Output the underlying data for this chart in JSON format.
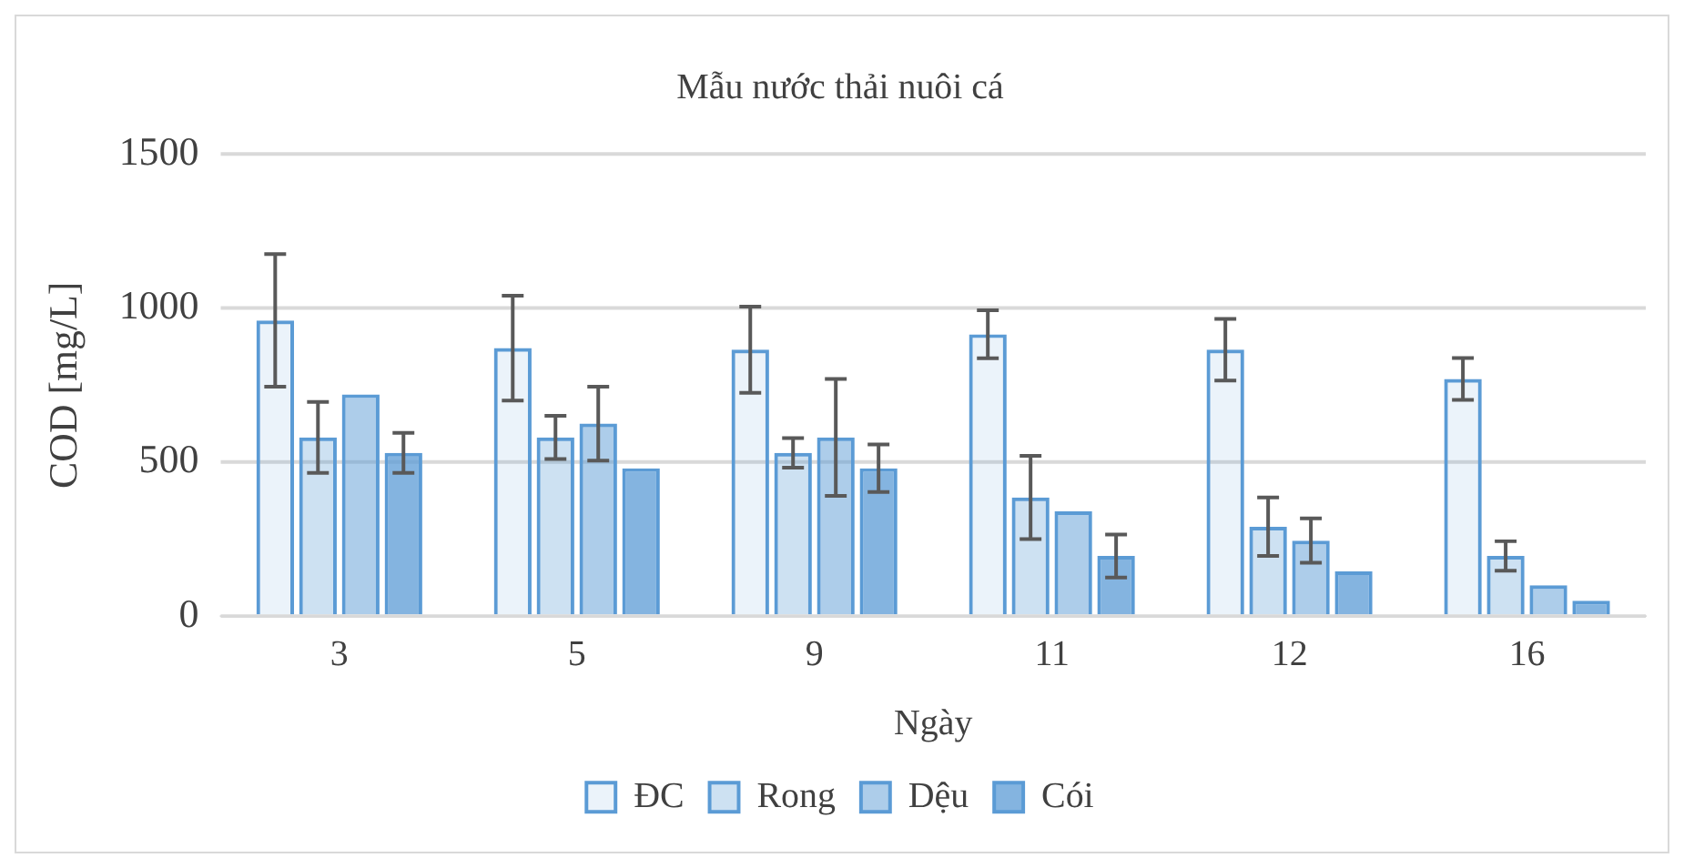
{
  "chart_data": {
    "type": "bar",
    "title": "Mẫu nước thải nuôi cá",
    "xlabel": "Ngày",
    "ylabel": "COD [mg/L]",
    "categories": [
      "3",
      "5",
      "9",
      "11",
      "12",
      "16"
    ],
    "series": [
      {
        "name": "ĐC",
        "color": "#5b9bd5",
        "values": [
          960,
          870,
          865,
          915,
          865,
          770
        ],
        "errors": [
          215,
          170,
          140,
          78,
          100,
          68
        ]
      },
      {
        "name": "Rong",
        "color": "#5b9bd5",
        "values": [
          580,
          580,
          530,
          385,
          290,
          195
        ],
        "errors": [
          115,
          70,
          48,
          135,
          95,
          48
        ]
      },
      {
        "name": "Dệu",
        "color": "#5b9bd5",
        "values": [
          720,
          625,
          580,
          340,
          245,
          100
        ],
        "errors": [
          null,
          120,
          190,
          null,
          72,
          null
        ]
      },
      {
        "name": "Cói",
        "color": "#5b9bd5",
        "values": [
          530,
          480,
          480,
          195,
          145,
          50
        ],
        "errors": [
          65,
          null,
          77,
          70,
          null,
          null
        ]
      }
    ],
    "ylim": [
      0,
      1500
    ],
    "yticks": [
      0,
      500,
      1000,
      1500
    ],
    "grid": "y",
    "legend": "bottom"
  }
}
